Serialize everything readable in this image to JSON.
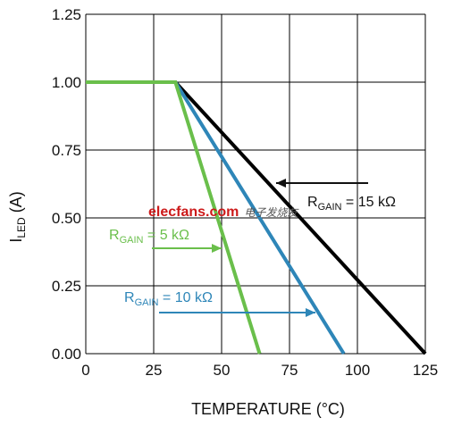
{
  "chart_data": {
    "type": "line",
    "xlabel": "TEMPERATURE (°C)",
    "ylabel": "I",
    "ylabel_sub": "LED",
    "ylabel_suffix": " (A)",
    "xlim": [
      0,
      125
    ],
    "ylim": [
      0,
      1.25
    ],
    "x_ticks": [
      "0",
      "25",
      "50",
      "75",
      "100",
      "125"
    ],
    "y_ticks": [
      "0.00",
      "0.25",
      "0.50",
      "0.75",
      "1.00",
      "1.25"
    ],
    "x_tick_values": [
      0,
      25,
      50,
      75,
      100,
      125
    ],
    "y_tick_values": [
      0,
      0.25,
      0.5,
      0.75,
      1.0,
      1.25
    ],
    "grid": true,
    "series": [
      {
        "name": "R GAIN = 15 kΩ",
        "color": "#000000",
        "x": [
          0,
          33,
          125
        ],
        "y": [
          1.0,
          1.0,
          0.0
        ]
      },
      {
        "name": "R GAIN = 10 kΩ",
        "color": "#2e86b8",
        "x": [
          0,
          33,
          95
        ],
        "y": [
          1.0,
          1.0,
          0.0
        ]
      },
      {
        "name": "R GAIN = 5 kΩ",
        "color": "#6abf4b",
        "x": [
          0,
          33,
          64
        ],
        "y": [
          1.0,
          1.0,
          0.0
        ]
      }
    ],
    "annotations": [
      {
        "pre": "R",
        "sub": "GAIN",
        "post": " = 15 kΩ",
        "color": "#111111"
      },
      {
        "pre": "R",
        "sub": "GAIN",
        "post": " = 5 kΩ",
        "color": "#6abf4b"
      },
      {
        "pre": "R",
        "sub": "GAIN",
        "post": " = 10 kΩ",
        "color": "#2e86b8"
      }
    ]
  },
  "watermark": {
    "main": "elecfans.com",
    "cn": "电子发烧友"
  }
}
